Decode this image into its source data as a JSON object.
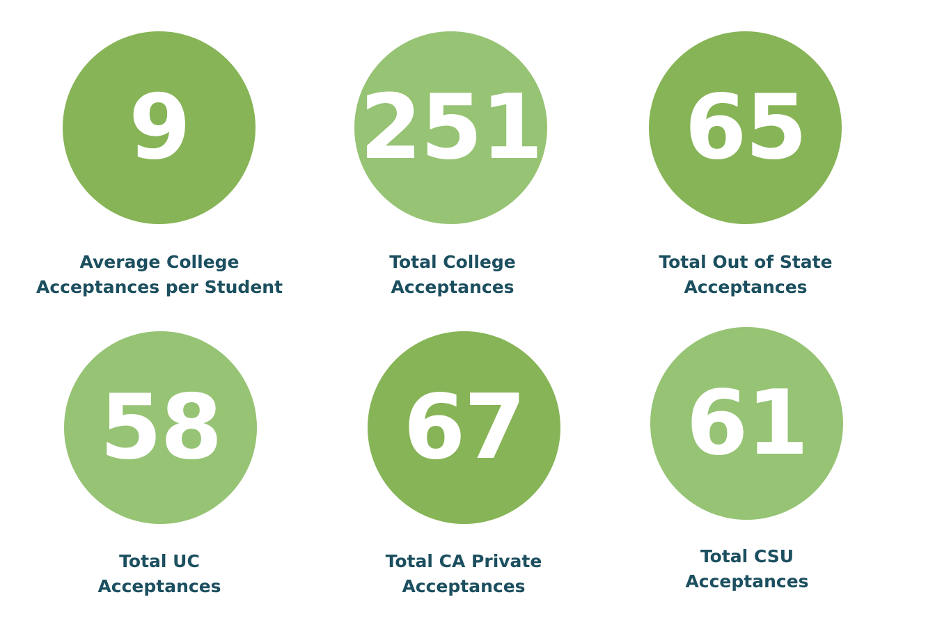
{
  "colors": {
    "dark_green": "#86b456",
    "light_green": "#96c374",
    "label_text": "#1c4f5f",
    "number_text": "#ffffff"
  },
  "stats": [
    {
      "value": "9",
      "label_line1": "Average College",
      "label_line2": "Acceptances per Student",
      "shade": "dark"
    },
    {
      "value": "251",
      "label_line1": "Total College",
      "label_line2": "Acceptances",
      "shade": "light"
    },
    {
      "value": "65",
      "label_line1": "Total Out of State",
      "label_line2": "Acceptances",
      "shade": "dark"
    },
    {
      "value": "58",
      "label_line1": "Total UC",
      "label_line2": "Acceptances",
      "shade": "light"
    },
    {
      "value": "67",
      "label_line1": "Total CA Private",
      "label_line2": "Acceptances",
      "shade": "dark"
    },
    {
      "value": "61",
      "label_line1": "Total CSU",
      "label_line2": "Acceptances",
      "shade": "light"
    }
  ]
}
